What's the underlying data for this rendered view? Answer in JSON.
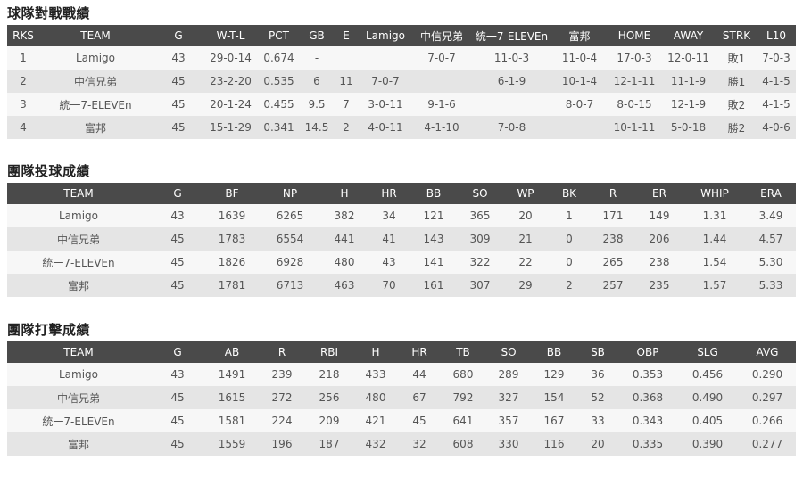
{
  "standings": {
    "title": "球隊對戰戰績",
    "headers": [
      "RKS",
      "TEAM",
      "G",
      "W-T-L",
      "PCT",
      "GB",
      "E",
      "Lamigo",
      "中信兄弟",
      "統一7-ELEVEn",
      "富邦",
      "HOME",
      "AWAY",
      "STRK",
      "L10"
    ],
    "rows": [
      [
        "1",
        "Lamigo",
        "43",
        "29-0-14",
        "0.674",
        "-",
        "",
        "",
        "7-0-7",
        "11-0-3",
        "11-0-4",
        "17-0-3",
        "12-0-11",
        "敗1",
        "7-0-3"
      ],
      [
        "2",
        "中信兄弟",
        "45",
        "23-2-20",
        "0.535",
        "6",
        "11",
        "7-0-7",
        "",
        "6-1-9",
        "10-1-4",
        "12-1-11",
        "11-1-9",
        "勝1",
        "4-1-5"
      ],
      [
        "3",
        "統一7-ELEVEn",
        "45",
        "20-1-24",
        "0.455",
        "9.5",
        "7",
        "3-0-11",
        "9-1-6",
        "",
        "8-0-7",
        "8-0-15",
        "12-1-9",
        "敗2",
        "4-1-5"
      ],
      [
        "4",
        "富邦",
        "45",
        "15-1-29",
        "0.341",
        "14.5",
        "2",
        "4-0-11",
        "4-1-10",
        "7-0-8",
        "",
        "10-1-11",
        "5-0-18",
        "勝2",
        "4-0-6"
      ]
    ]
  },
  "pitching": {
    "title": "團隊投球成績",
    "headers": [
      "TEAM",
      "G",
      "BF",
      "NP",
      "H",
      "HR",
      "BB",
      "SO",
      "WP",
      "BK",
      "R",
      "ER",
      "WHIP",
      "ERA"
    ],
    "rows": [
      [
        "Lamigo",
        "43",
        "1639",
        "6265",
        "382",
        "34",
        "121",
        "365",
        "20",
        "1",
        "171",
        "149",
        "1.31",
        "3.49"
      ],
      [
        "中信兄弟",
        "45",
        "1783",
        "6554",
        "441",
        "41",
        "143",
        "309",
        "21",
        "0",
        "238",
        "206",
        "1.44",
        "4.57"
      ],
      [
        "統一7-ELEVEn",
        "45",
        "1826",
        "6928",
        "480",
        "43",
        "141",
        "322",
        "22",
        "0",
        "265",
        "238",
        "1.54",
        "5.30"
      ],
      [
        "富邦",
        "45",
        "1781",
        "6713",
        "463",
        "70",
        "161",
        "307",
        "29",
        "2",
        "257",
        "235",
        "1.57",
        "5.33"
      ]
    ]
  },
  "batting": {
    "title": "團隊打擊成績",
    "headers": [
      "TEAM",
      "G",
      "AB",
      "R",
      "RBI",
      "H",
      "HR",
      "TB",
      "SO",
      "BB",
      "SB",
      "OBP",
      "SLG",
      "AVG"
    ],
    "rows": [
      [
        "Lamigo",
        "43",
        "1491",
        "239",
        "218",
        "433",
        "44",
        "680",
        "289",
        "129",
        "36",
        "0.353",
        "0.456",
        "0.290"
      ],
      [
        "中信兄弟",
        "45",
        "1615",
        "272",
        "256",
        "480",
        "67",
        "792",
        "327",
        "154",
        "52",
        "0.368",
        "0.490",
        "0.297"
      ],
      [
        "統一7-ELEVEn",
        "45",
        "1581",
        "224",
        "209",
        "421",
        "45",
        "641",
        "357",
        "167",
        "33",
        "0.343",
        "0.405",
        "0.266"
      ],
      [
        "富邦",
        "45",
        "1559",
        "196",
        "187",
        "432",
        "32",
        "608",
        "330",
        "116",
        "20",
        "0.335",
        "0.390",
        "0.277"
      ]
    ]
  },
  "colors": {
    "header_bg": "#4a4a4a",
    "row_light": "#f7f7f7",
    "row_dark": "#e5e5e5"
  }
}
